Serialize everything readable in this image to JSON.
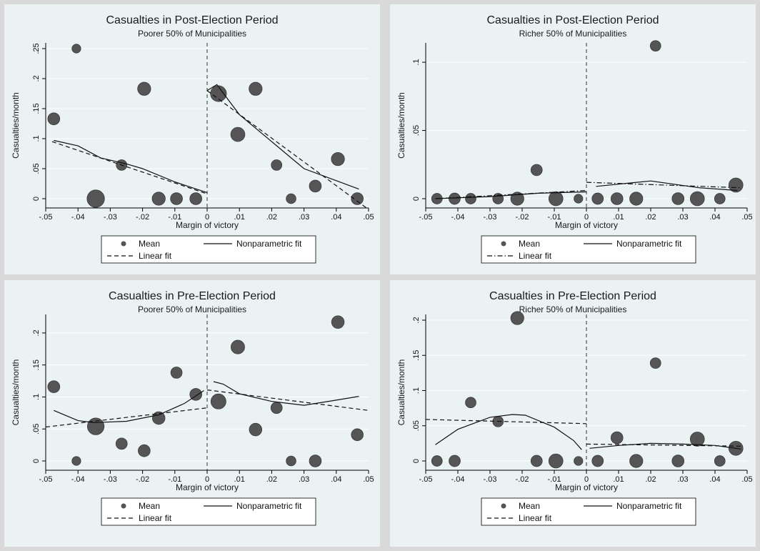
{
  "legend": {
    "mean": "Mean",
    "nonparametric": "Nonparametric fit",
    "linear": "Linear fit"
  },
  "colors": {
    "background": "#eaf2f3",
    "outer": "#d9d9d9",
    "marker": "#555555",
    "line": "#111111",
    "grid": "#ffffff"
  },
  "chart_data": [
    {
      "type": "scatter",
      "title": "Casualties in Post-Election Period",
      "subtitle": "Poorer 50% of Municipalities",
      "xlabel": "Margin of victory",
      "ylabel": "Casualties/month",
      "xlim": [
        -0.05,
        0.05
      ],
      "ylim": [
        0,
        0.25
      ],
      "xticks": [
        -0.05,
        -0.04,
        -0.03,
        -0.02,
        -0.01,
        0,
        0.01,
        0.02,
        0.03,
        0.04,
        0.05
      ],
      "xtick_labels": [
        "-.05",
        "-.04",
        "-.03",
        "-.02",
        "-.01",
        "0",
        ".01",
        ".02",
        ".03",
        ".04",
        ".05"
      ],
      "yticks": [
        0,
        0.05,
        0.1,
        0.15,
        0.2,
        0.25
      ],
      "ytick_labels": [
        "0",
        ".05",
        ".1",
        ".15",
        ".2",
        ".25"
      ],
      "linear_style": "dash",
      "grid": true,
      "legend_position": "bottom",
      "points": [
        {
          "x": -0.0475,
          "y": 0.133,
          "w": 3
        },
        {
          "x": -0.0405,
          "y": 0.25,
          "w": 1
        },
        {
          "x": -0.0345,
          "y": 0.0,
          "w": 9
        },
        {
          "x": -0.0265,
          "y": 0.056,
          "w": 2
        },
        {
          "x": -0.0195,
          "y": 0.183,
          "w": 4
        },
        {
          "x": -0.015,
          "y": 0.0,
          "w": 4
        },
        {
          "x": -0.0095,
          "y": 0.0,
          "w": 3
        },
        {
          "x": -0.0035,
          "y": 0.0,
          "w": 3
        },
        {
          "x": 0.0035,
          "y": 0.175,
          "w": 7
        },
        {
          "x": 0.0095,
          "y": 0.107,
          "w": 5
        },
        {
          "x": 0.015,
          "y": 0.183,
          "w": 4
        },
        {
          "x": 0.0215,
          "y": 0.056,
          "w": 2
        },
        {
          "x": 0.026,
          "y": 0.0,
          "w": 1.5
        },
        {
          "x": 0.0335,
          "y": 0.021,
          "w": 3
        },
        {
          "x": 0.0405,
          "y": 0.066,
          "w": 4
        },
        {
          "x": 0.0465,
          "y": 0.0,
          "w": 3
        }
      ],
      "nonparam_left": [
        [
          -0.0475,
          0.097
        ],
        [
          -0.04,
          0.088
        ],
        [
          -0.033,
          0.068
        ],
        [
          -0.025,
          0.058
        ],
        [
          -0.02,
          0.05
        ],
        [
          -0.01,
          0.028
        ],
        [
          0,
          0.01
        ]
      ],
      "nonparam_right": [
        [
          0,
          0.18
        ],
        [
          0.003,
          0.19
        ],
        [
          0.01,
          0.14
        ],
        [
          0.02,
          0.095
        ],
        [
          0.03,
          0.05
        ],
        [
          0.04,
          0.03
        ],
        [
          0.047,
          0.016
        ]
      ],
      "linear_left": [
        [
          -0.048,
          0.095
        ],
        [
          0,
          0.008
        ]
      ],
      "linear_right": [
        [
          0,
          0.18
        ],
        [
          0.05,
          -0.018
        ]
      ]
    },
    {
      "type": "scatter",
      "title": "Casualties in Post-Election Period",
      "subtitle": "Richer 50% of Municipalities",
      "xlabel": "Margin of victory",
      "ylabel": "Casualties/month",
      "xlim": [
        -0.05,
        0.05
      ],
      "ylim": [
        0,
        0.11
      ],
      "xticks": [
        -0.05,
        -0.04,
        -0.03,
        -0.02,
        -0.01,
        0,
        0.01,
        0.02,
        0.03,
        0.04,
        0.05
      ],
      "xtick_labels": [
        "-.05",
        "-.04",
        "-.03",
        "-.02",
        "-.01",
        "0",
        ".01",
        ".02",
        ".03",
        ".04",
        ".05"
      ],
      "yticks": [
        0,
        0.05,
        0.1
      ],
      "ytick_labels": [
        "0",
        ".05",
        ".1"
      ],
      "linear_style": "dashdot",
      "grid": true,
      "legend_position": "bottom",
      "points": [
        {
          "x": -0.0465,
          "y": 0.0,
          "w": 2
        },
        {
          "x": -0.041,
          "y": 0.0,
          "w": 2.5
        },
        {
          "x": -0.036,
          "y": 0.0,
          "w": 2
        },
        {
          "x": -0.0275,
          "y": 0.0,
          "w": 2
        },
        {
          "x": -0.0215,
          "y": 0.0,
          "w": 4
        },
        {
          "x": -0.0155,
          "y": 0.021,
          "w": 2.5
        },
        {
          "x": -0.0095,
          "y": 0.0,
          "w": 5
        },
        {
          "x": -0.0025,
          "y": 0.0,
          "w": 1
        },
        {
          "x": 0.0035,
          "y": 0.0,
          "w": 2.5
        },
        {
          "x": 0.0095,
          "y": 0.0,
          "w": 3
        },
        {
          "x": 0.0155,
          "y": 0.0,
          "w": 4
        },
        {
          "x": 0.0215,
          "y": 0.112,
          "w": 2
        },
        {
          "x": 0.0285,
          "y": 0.0,
          "w": 3
        },
        {
          "x": 0.0345,
          "y": 0.0,
          "w": 5
        },
        {
          "x": 0.0415,
          "y": 0.0,
          "w": 2
        },
        {
          "x": 0.0465,
          "y": 0.01,
          "w": 5
        }
      ],
      "nonparam_left": [
        [
          -0.047,
          0.0
        ],
        [
          -0.03,
          0.0015
        ],
        [
          -0.015,
          0.004
        ],
        [
          0,
          0.005
        ]
      ],
      "nonparam_right": [
        [
          0.003,
          0.009
        ],
        [
          0.02,
          0.013
        ],
        [
          0.035,
          0.008
        ],
        [
          0.047,
          0.006
        ]
      ],
      "linear_left": [
        [
          -0.047,
          0.0
        ],
        [
          0,
          0.006
        ]
      ],
      "linear_right": [
        [
          0,
          0.012
        ],
        [
          0.048,
          0.008
        ]
      ]
    },
    {
      "type": "scatter",
      "title": "Casualties in Pre-Election Period",
      "subtitle": "Poorer 50% of Municipalities",
      "xlabel": "Margin of victory",
      "ylabel": "Casualties/month",
      "xlim": [
        -0.05,
        0.05
      ],
      "ylim": [
        0,
        0.22
      ],
      "xticks": [
        -0.05,
        -0.04,
        -0.03,
        -0.02,
        -0.01,
        0,
        0.01,
        0.02,
        0.03,
        0.04,
        0.05
      ],
      "xtick_labels": [
        "-.05",
        "-.04",
        "-.03",
        "-.02",
        "-.01",
        "0",
        ".01",
        ".02",
        ".03",
        ".04",
        ".05"
      ],
      "yticks": [
        0,
        0.05,
        0.1,
        0.15,
        0.2
      ],
      "ytick_labels": [
        "0",
        ".05",
        ".1",
        ".15",
        ".2"
      ],
      "linear_style": "dash",
      "grid": true,
      "legend_position": "bottom",
      "points": [
        {
          "x": -0.0475,
          "y": 0.116,
          "w": 3
        },
        {
          "x": -0.0405,
          "y": 0.0,
          "w": 1
        },
        {
          "x": -0.0345,
          "y": 0.054,
          "w": 8
        },
        {
          "x": -0.0265,
          "y": 0.027,
          "w": 2.5
        },
        {
          "x": -0.0195,
          "y": 0.016,
          "w": 3
        },
        {
          "x": -0.015,
          "y": 0.067,
          "w": 3.5
        },
        {
          "x": -0.0095,
          "y": 0.138,
          "w": 2.5
        },
        {
          "x": -0.0035,
          "y": 0.104,
          "w": 3
        },
        {
          "x": 0.0035,
          "y": 0.093,
          "w": 6
        },
        {
          "x": 0.0095,
          "y": 0.178,
          "w": 4.5
        },
        {
          "x": 0.015,
          "y": 0.049,
          "w": 3.5
        },
        {
          "x": 0.0215,
          "y": 0.083,
          "w": 2.5
        },
        {
          "x": 0.026,
          "y": 0.0,
          "w": 1.5
        },
        {
          "x": 0.0335,
          "y": 0.0,
          "w": 3
        },
        {
          "x": 0.0405,
          "y": 0.217,
          "w": 3.5
        },
        {
          "x": 0.0465,
          "y": 0.041,
          "w": 3
        }
      ],
      "nonparam_left": [
        [
          -0.0475,
          0.079
        ],
        [
          -0.04,
          0.063
        ],
        [
          -0.035,
          0.06
        ],
        [
          -0.025,
          0.062
        ],
        [
          -0.015,
          0.072
        ],
        [
          -0.007,
          0.09
        ],
        [
          -0.001,
          0.11
        ]
      ],
      "nonparam_right": [
        [
          0.002,
          0.124
        ],
        [
          0.005,
          0.12
        ],
        [
          0.01,
          0.105
        ],
        [
          0.02,
          0.093
        ],
        [
          0.03,
          0.087
        ],
        [
          0.04,
          0.095
        ],
        [
          0.047,
          0.101
        ]
      ],
      "linear_left": [
        [
          -0.05,
          0.053
        ],
        [
          0,
          0.083
        ]
      ],
      "linear_right": [
        [
          0,
          0.111
        ],
        [
          0.05,
          0.079
        ]
      ]
    },
    {
      "type": "scatter",
      "title": "Casualties in Pre-Election Period",
      "subtitle": "Richer 50% of Municipalities",
      "xlabel": "Margin of victory",
      "ylabel": "Casualties/month",
      "xlim": [
        -0.05,
        0.05
      ],
      "ylim": [
        0,
        0.2
      ],
      "xticks": [
        -0.05,
        -0.04,
        -0.03,
        -0.02,
        -0.01,
        0,
        0.01,
        0.02,
        0.03,
        0.04,
        0.05
      ],
      "xtick_labels": [
        "-.05",
        "-.04",
        "-.03",
        "-.02",
        "-.01",
        "0",
        ".01",
        ".02",
        ".03",
        ".04",
        ".05"
      ],
      "yticks": [
        0,
        0.05,
        0.1,
        0.15,
        0.2
      ],
      "ytick_labels": [
        "0",
        ".05",
        ".1",
        ".15",
        ".2"
      ],
      "linear_style": "dash",
      "grid": true,
      "legend_position": "bottom",
      "points": [
        {
          "x": -0.0465,
          "y": 0.0,
          "w": 2
        },
        {
          "x": -0.041,
          "y": 0.0,
          "w": 2.5
        },
        {
          "x": -0.036,
          "y": 0.083,
          "w": 2
        },
        {
          "x": -0.0275,
          "y": 0.056,
          "w": 2
        },
        {
          "x": -0.0215,
          "y": 0.203,
          "w": 4
        },
        {
          "x": -0.0155,
          "y": 0.0,
          "w": 2.5
        },
        {
          "x": -0.0095,
          "y": 0.0,
          "w": 5
        },
        {
          "x": -0.0025,
          "y": 0.0,
          "w": 1
        },
        {
          "x": 0.0035,
          "y": 0.0,
          "w": 2.5
        },
        {
          "x": 0.0095,
          "y": 0.033,
          "w": 3
        },
        {
          "x": 0.0155,
          "y": 0.0,
          "w": 4
        },
        {
          "x": 0.0215,
          "y": 0.139,
          "w": 2
        },
        {
          "x": 0.0285,
          "y": 0.0,
          "w": 3
        },
        {
          "x": 0.0345,
          "y": 0.031,
          "w": 5
        },
        {
          "x": 0.0415,
          "y": 0.0,
          "w": 2
        },
        {
          "x": 0.0465,
          "y": 0.018,
          "w": 5
        }
      ],
      "nonparam_left": [
        [
          -0.047,
          0.023
        ],
        [
          -0.04,
          0.045
        ],
        [
          -0.03,
          0.062
        ],
        [
          -0.023,
          0.066
        ],
        [
          -0.019,
          0.065
        ],
        [
          -0.01,
          0.048
        ],
        [
          -0.004,
          0.029
        ],
        [
          -0.0015,
          0.016
        ]
      ],
      "nonparam_right": [
        [
          0.001,
          0.018
        ],
        [
          0.01,
          0.022
        ],
        [
          0.02,
          0.025
        ],
        [
          0.03,
          0.024
        ],
        [
          0.04,
          0.022
        ],
        [
          0.048,
          0.017
        ]
      ],
      "linear_left": [
        [
          -0.05,
          0.059
        ],
        [
          0,
          0.053
        ]
      ],
      "linear_right": [
        [
          0,
          0.024
        ],
        [
          0.048,
          0.021
        ]
      ]
    }
  ]
}
